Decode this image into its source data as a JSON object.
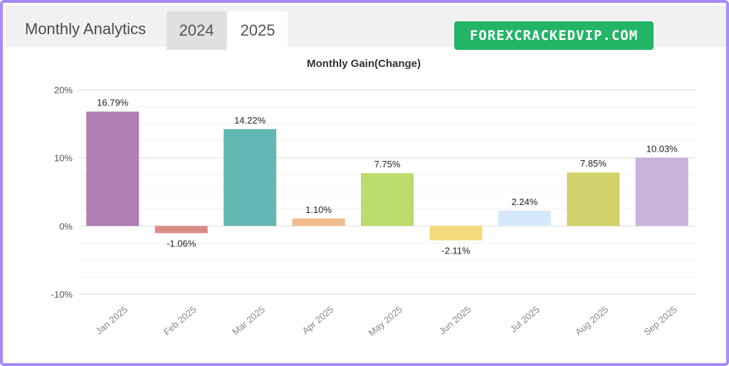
{
  "header": {
    "title": "Monthly Analytics",
    "tabs": [
      {
        "label": "2024",
        "active": false
      },
      {
        "label": "2025",
        "active": true
      }
    ],
    "watermark": "FOREXCRACKEDVIP.COM"
  },
  "chart_data": {
    "type": "bar",
    "title": "Monthly Gain(Change)",
    "categories": [
      "Jan 2025",
      "Feb 2025",
      "Mar 2025",
      "Apr 2025",
      "May 2025",
      "Jun 2025",
      "Jul 2025",
      "Aug 2025",
      "Sep 2025"
    ],
    "values": [
      16.79,
      -1.06,
      14.22,
      1.1,
      7.75,
      -2.11,
      2.24,
      7.85,
      10.03
    ],
    "value_labels": [
      "16.79%",
      "-1.06%",
      "14.22%",
      "1.10%",
      "7.75%",
      "-2.11%",
      "2.24%",
      "7.85%",
      "10.03%"
    ],
    "colors": [
      "#b07fb4",
      "#d98c87",
      "#64b8b4",
      "#f2bd8e",
      "#bcdc6e",
      "#f5d97a",
      "#d6e9fb",
      "#d3d16b",
      "#c8b4db"
    ],
    "yticks": [
      20,
      10,
      0,
      -10
    ],
    "ytick_labels": [
      "20%",
      "10%",
      "0%",
      "-10%"
    ],
    "ylim": [
      -10,
      20
    ],
    "grid": true,
    "xlabel": "",
    "ylabel": ""
  }
}
